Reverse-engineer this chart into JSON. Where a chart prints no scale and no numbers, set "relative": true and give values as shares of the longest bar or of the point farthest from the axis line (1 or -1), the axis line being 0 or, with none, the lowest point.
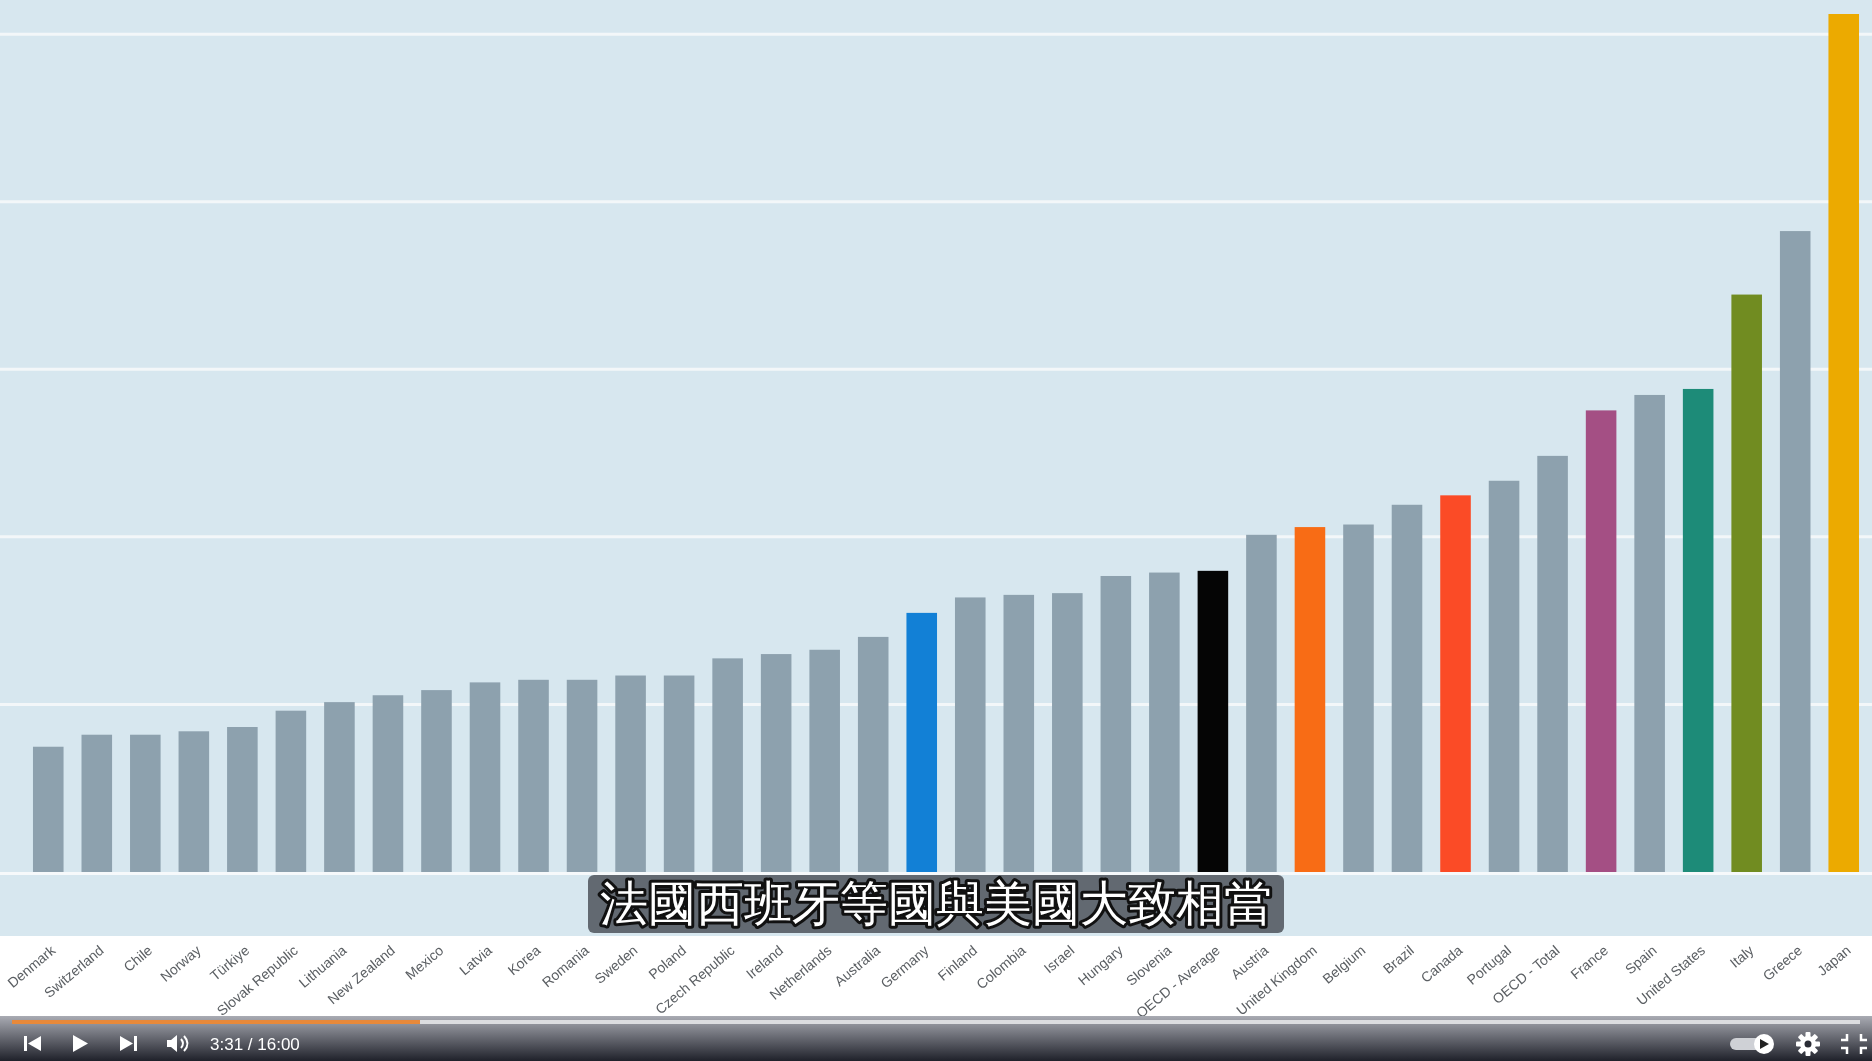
{
  "chart_data": {
    "type": "bar",
    "relative": true,
    "grid": "y",
    "categories": [
      "Denmark",
      "Switzerland",
      "Chile",
      "Norway",
      "Türkiye",
      "Slovak Republic",
      "Lithuania",
      "New Zealand",
      "Mexico",
      "Latvia",
      "Korea",
      "Romania",
      "Sweden",
      "Poland",
      "Czech Republic",
      "Ireland",
      "Netherlands",
      "Australia",
      "Germany",
      "Finland",
      "Colombia",
      "Israel",
      "Hungary",
      "Slovenia",
      "OECD - Average",
      "Austria",
      "United Kingdom",
      "Belgium",
      "Brazil",
      "Canada",
      "Portugal",
      "OECD - Total",
      "France",
      "Spain",
      "United States",
      "Italy",
      "Greece",
      "Japan"
    ],
    "values": [
      0.146,
      0.16,
      0.16,
      0.164,
      0.169,
      0.188,
      0.198,
      0.206,
      0.212,
      0.221,
      0.224,
      0.224,
      0.229,
      0.229,
      0.249,
      0.254,
      0.259,
      0.274,
      0.302,
      0.32,
      0.323,
      0.325,
      0.345,
      0.349,
      0.351,
      0.393,
      0.402,
      0.405,
      0.428,
      0.439,
      0.456,
      0.485,
      0.538,
      0.556,
      0.563,
      0.673,
      0.747,
      1
    ],
    "colors": [
      "#8da1ae",
      "#8da1ae",
      "#8da1ae",
      "#8da1ae",
      "#8da1ae",
      "#8da1ae",
      "#8da1ae",
      "#8da1ae",
      "#8da1ae",
      "#8da1ae",
      "#8da1ae",
      "#8da1ae",
      "#8da1ae",
      "#8da1ae",
      "#8da1ae",
      "#8da1ae",
      "#8da1ae",
      "#8da1ae",
      "#1280d6",
      "#8da1ae",
      "#8da1ae",
      "#8da1ae",
      "#8da1ae",
      "#8da1ae",
      "#050505",
      "#8da1ae",
      "#f86c15",
      "#8da1ae",
      "#8da1ae",
      "#fb4b26",
      "#8da1ae",
      "#8da1ae",
      "#a44f84",
      "#8da1ae",
      "#1d8b78",
      "#718c21",
      "#8da1ae",
      "#ecaa00"
    ],
    "annotations": [
      "法國西班牙等國與美國大致相當",
      "3:31 / 16:00"
    ]
  }
}
